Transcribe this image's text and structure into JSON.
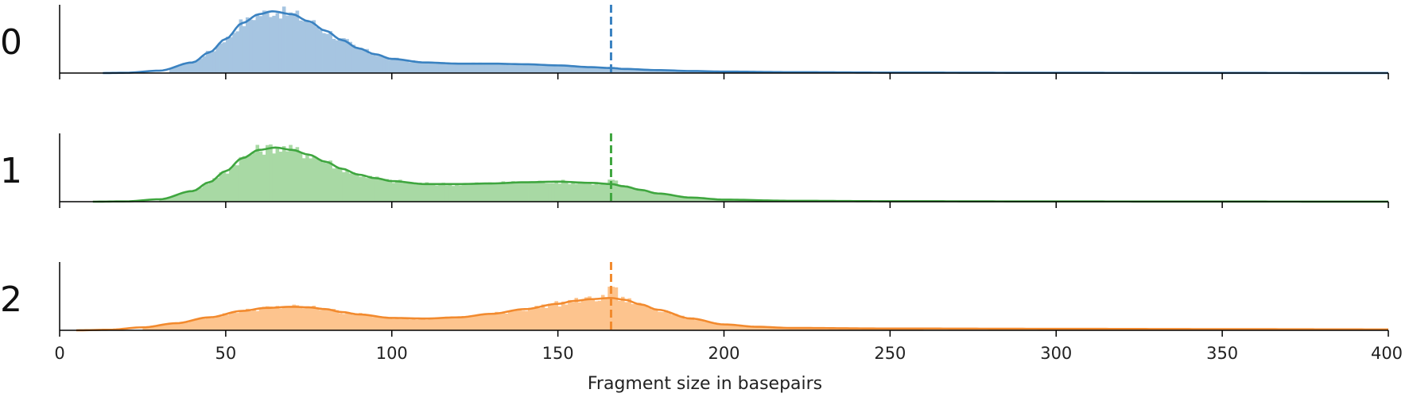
{
  "chart_data": {
    "type": "area",
    "xlabel": "Fragment size in basepairs",
    "xlim": [
      0,
      400
    ],
    "x_ticks": [
      0,
      50,
      100,
      150,
      200,
      250,
      300,
      350,
      400
    ],
    "x_tick_labels": [
      "0",
      "50",
      "100",
      "150",
      "200",
      "250",
      "300",
      "350",
      "400"
    ],
    "grid": false,
    "legend": "none",
    "panels": [
      {
        "label": "0",
        "color": "#3a82c1",
        "fill": "#a6c5e1",
        "range": [
          13,
          400
        ],
        "marker_x": 166,
        "density": {
          "x": [
            13,
            20,
            30,
            40,
            45,
            50,
            55,
            60,
            64,
            70,
            75,
            80,
            85,
            90,
            95,
            100,
            110,
            120,
            130,
            140,
            150,
            160,
            166,
            170,
            180,
            190,
            200,
            220,
            250,
            300,
            350,
            400
          ],
          "y": [
            0.0,
            0.005,
            0.04,
            0.18,
            0.35,
            0.58,
            0.85,
            1.0,
            1.05,
            1.0,
            0.88,
            0.72,
            0.56,
            0.42,
            0.32,
            0.24,
            0.18,
            0.16,
            0.16,
            0.15,
            0.13,
            0.1,
            0.085,
            0.07,
            0.05,
            0.035,
            0.025,
            0.015,
            0.008,
            0.004,
            0.002,
            0.001
          ]
        }
      },
      {
        "label": "1",
        "color": "#3fa63f",
        "fill": "#a8d9a4",
        "range": [
          10,
          400
        ],
        "marker_x": 166,
        "density": {
          "x": [
            10,
            20,
            30,
            40,
            45,
            50,
            55,
            60,
            65,
            70,
            75,
            80,
            85,
            90,
            95,
            100,
            110,
            120,
            130,
            140,
            150,
            160,
            166,
            170,
            175,
            180,
            190,
            200,
            220,
            250,
            300,
            350,
            400
          ],
          "y": [
            0.0,
            0.005,
            0.04,
            0.18,
            0.33,
            0.52,
            0.74,
            0.88,
            0.92,
            0.88,
            0.8,
            0.68,
            0.56,
            0.46,
            0.4,
            0.35,
            0.3,
            0.3,
            0.31,
            0.33,
            0.34,
            0.32,
            0.3,
            0.26,
            0.2,
            0.14,
            0.07,
            0.035,
            0.015,
            0.008,
            0.004,
            0.002,
            0.001
          ]
        }
      },
      {
        "label": "2",
        "color": "#f28a2e",
        "fill": "#fdc48e",
        "range": [
          5,
          400
        ],
        "marker_x": 166,
        "density": {
          "x": [
            5,
            15,
            25,
            35,
            45,
            55,
            62,
            70,
            75,
            80,
            85,
            90,
            100,
            110,
            120,
            130,
            140,
            150,
            155,
            160,
            166,
            170,
            175,
            180,
            190,
            200,
            210,
            220,
            250,
            300,
            350,
            400
          ],
          "y": [
            0.0,
            0.01,
            0.05,
            0.12,
            0.22,
            0.33,
            0.38,
            0.4,
            0.39,
            0.36,
            0.31,
            0.27,
            0.21,
            0.2,
            0.22,
            0.28,
            0.36,
            0.45,
            0.5,
            0.53,
            0.55,
            0.52,
            0.44,
            0.35,
            0.2,
            0.1,
            0.06,
            0.04,
            0.03,
            0.025,
            0.02,
            0.015
          ]
        }
      }
    ]
  }
}
